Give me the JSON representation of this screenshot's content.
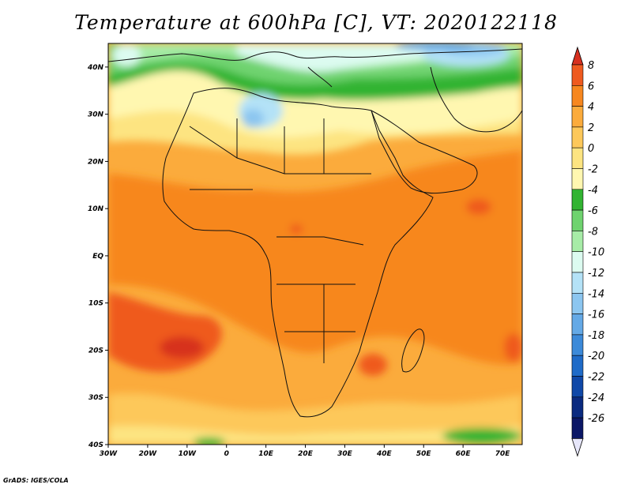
{
  "title": "Temperature at 600hPa [C], VT: 2020122118",
  "credit": "GrADS: IGES/COLA",
  "map": {
    "lat_labels": [
      "40N",
      "30N",
      "20N",
      "10N",
      "EQ",
      "10S",
      "20S",
      "30S",
      "40S"
    ],
    "lon_labels": [
      "30W",
      "20W",
      "10W",
      "0",
      "10E",
      "20E",
      "30E",
      "40E",
      "50E",
      "60E",
      "70E"
    ],
    "lat_range": [
      -40,
      45
    ],
    "lon_range": [
      -30,
      75
    ]
  },
  "colorbar": {
    "labels": [
      "8",
      "6",
      "4",
      "2",
      "0",
      "-2",
      "-4",
      "-6",
      "-8",
      "-10",
      "-12",
      "-14",
      "-16",
      "-18",
      "-20",
      "-22",
      "-24",
      "-26"
    ],
    "colors": [
      "#d7301f",
      "#ef5a1f",
      "#f7871f",
      "#fbab3c",
      "#fdc85a",
      "#fde481",
      "#fff7b0",
      "#32b432",
      "#6fd36f",
      "#a7eca7",
      "#dcfbf0",
      "#b4e2f7",
      "#8cc6f0",
      "#64a9e6",
      "#3c8ad9",
      "#1f6bc8",
      "#0f48a8",
      "#0a2a80",
      "#0b1766",
      "#e6e6fa"
    ]
  }
}
